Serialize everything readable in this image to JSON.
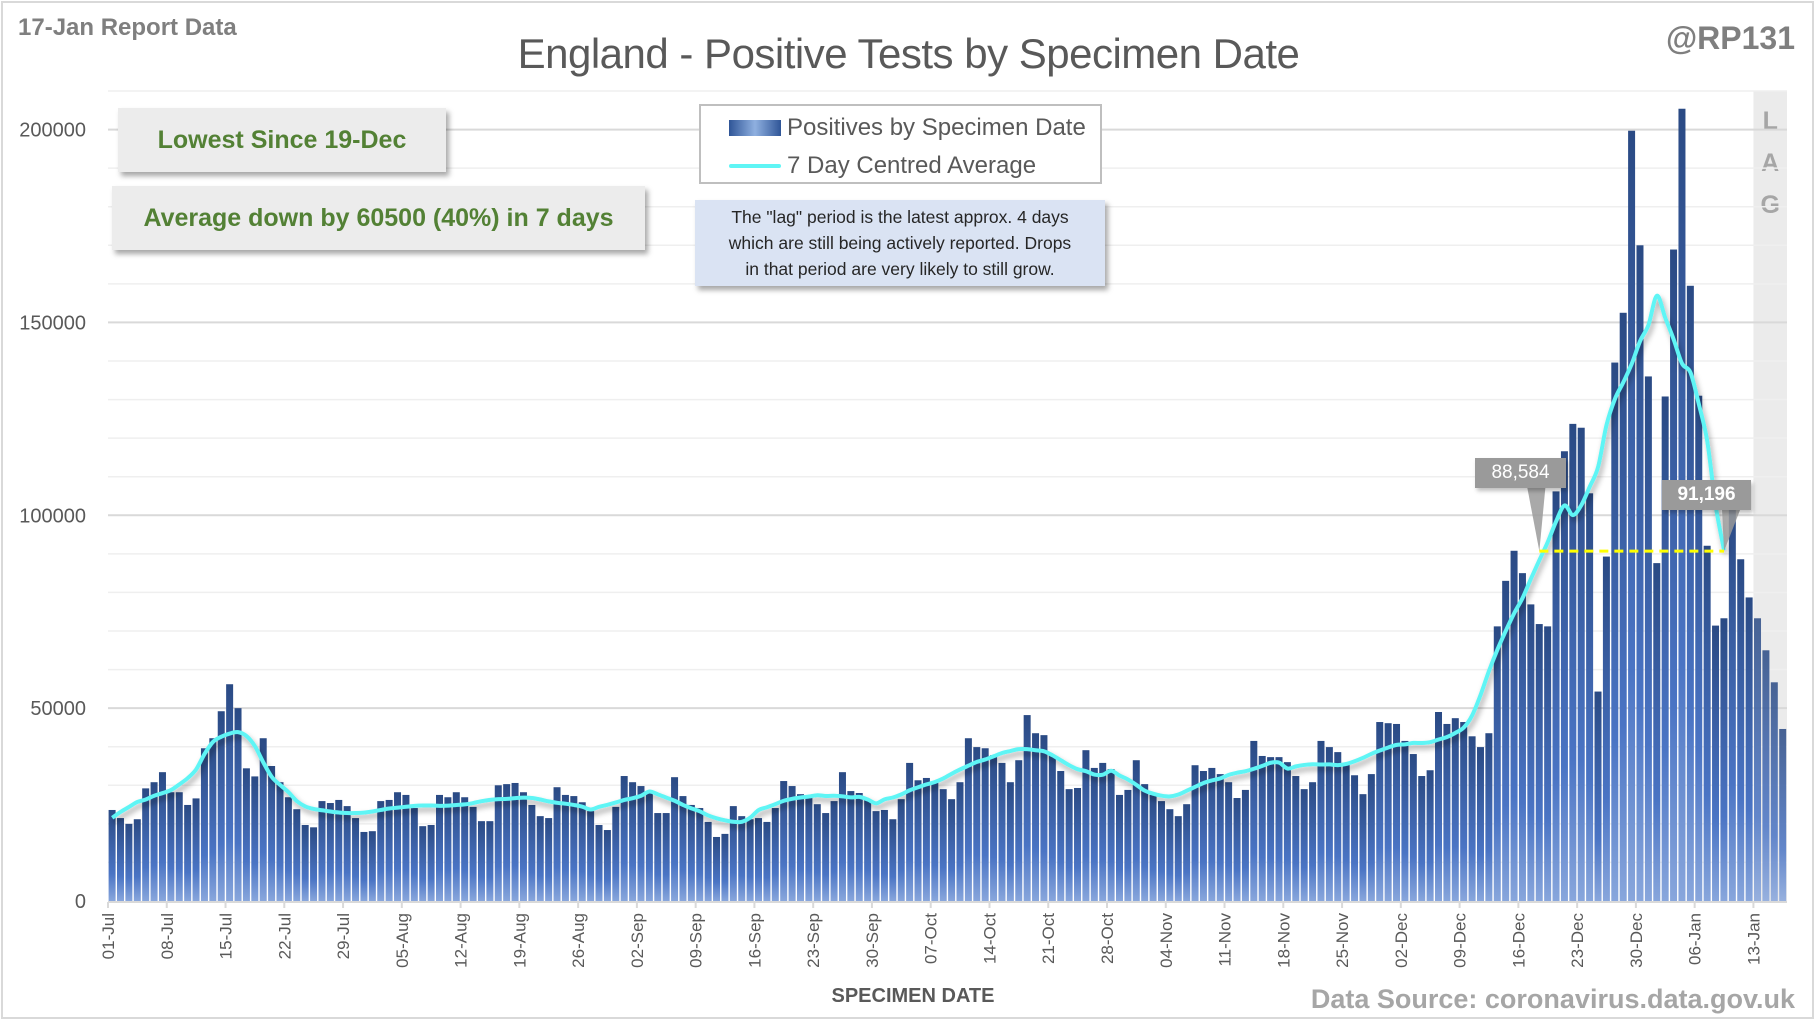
{
  "header": {
    "report_label": "17-Jan Report Data",
    "handle": "@RP131",
    "title": "England - Positive Tests by Specimen Date"
  },
  "callouts": {
    "lowest_since": "Lowest Since 19-Dec",
    "average_change": "Average down by 60500 (40%) in 7 days"
  },
  "legend": {
    "bars_label": "Positives by Specimen Date",
    "line_label": "7 Day Centred Average"
  },
  "lag_note": {
    "line1": "The \"lag\" period is the latest approx. 4 days",
    "line2": "which are still being actively reported. Drops",
    "line3": "in that period are very likely to still grow."
  },
  "lag_label": [
    "L",
    "A",
    "G"
  ],
  "value_labels": [
    {
      "text": "88,584",
      "index": 170,
      "value": 88584
    },
    {
      "text": "91,196",
      "index": 192,
      "value": 91196
    }
  ],
  "footer": {
    "xlabel": "SPECIMEN DATE",
    "source": "Data Source: coronavirus.data.gov.uk"
  },
  "colors": {
    "bar_dark": "#2f4f8a",
    "bar_light": "#7f9fd6",
    "avg_line": "#5ff5f5",
    "reference_line": "#ffff00",
    "callout_text": "#538135",
    "lag_shade": "#ebebeb"
  },
  "chart_data": {
    "type": "bar",
    "title": "England - Positive Tests by Specimen Date",
    "xlabel": "SPECIMEN DATE",
    "ylabel": "",
    "ylim": [
      0,
      210000
    ],
    "yticks": [
      0,
      50000,
      100000,
      150000,
      200000
    ],
    "grid_step": 10000,
    "grid": true,
    "legend_position": "top-center",
    "start_date": "01-Jul",
    "end_date": "16-Jan",
    "x_tick_labels": [
      "01-Jul",
      "08-Jul",
      "15-Jul",
      "22-Jul",
      "29-Jul",
      "05-Aug",
      "12-Aug",
      "19-Aug",
      "26-Aug",
      "02-Sep",
      "09-Sep",
      "16-Sep",
      "23-Sep",
      "30-Sep",
      "07-Oct",
      "14-Oct",
      "21-Oct",
      "28-Oct",
      "04-Nov",
      "11-Nov",
      "18-Nov",
      "25-Nov",
      "02-Dec",
      "09-Dec",
      "16-Dec",
      "23-Dec",
      "30-Dec",
      "06-Jan",
      "13-Jan"
    ],
    "x_tick_every": 7,
    "lag_days": 4,
    "series": [
      {
        "name": "Positives by Specimen Date",
        "kind": "bar",
        "values": [
          23600,
          21500,
          20000,
          21200,
          29200,
          30800,
          33400,
          28200,
          28200,
          24900,
          26600,
          39600,
          42200,
          49200,
          56200,
          50000,
          34400,
          32300,
          42200,
          35000,
          30800,
          26900,
          23800,
          19700,
          19100,
          25900,
          25400,
          26200,
          24600,
          21500,
          17900,
          18100,
          25900,
          26200,
          28200,
          27500,
          24100,
          19400,
          19700,
          27500,
          26900,
          28200,
          26900,
          24400,
          20700,
          20700,
          30000,
          30300,
          30600,
          28200,
          24900,
          22000,
          21500,
          29500,
          27500,
          27200,
          25600,
          23300,
          19700,
          18400,
          24400,
          32400,
          30800,
          29800,
          28000,
          22800,
          22800,
          32100,
          27200,
          24900,
          24100,
          20500,
          16600,
          17400,
          24600,
          22000,
          21200,
          21500,
          20500,
          24100,
          31100,
          29800,
          27700,
          27200,
          25100,
          22800,
          25900,
          33400,
          28500,
          28000,
          26200,
          23300,
          23600,
          21200,
          26400,
          35800,
          31300,
          31900,
          30800,
          29000,
          26400,
          30800,
          42200,
          39900,
          39600,
          37800,
          35800,
          30800,
          36500,
          48200,
          43500,
          43000,
          37800,
          33700,
          29000,
          29300,
          39100,
          34500,
          35800,
          34200,
          27500,
          28800,
          36500,
          30300,
          27500,
          25900,
          23800,
          22000,
          25100,
          35200,
          33700,
          34500,
          32900,
          30800,
          26700,
          28800,
          41500,
          37600,
          37300,
          37300,
          36000,
          32400,
          29000,
          30800,
          41500,
          39900,
          38600,
          35500,
          32600,
          27700,
          32900,
          46400,
          46100,
          45900,
          41500,
          38100,
          32400,
          33900,
          49000,
          45900,
          47400,
          46400,
          42700,
          39900,
          43500,
          71200,
          83000,
          90800,
          85000,
          76900,
          71800,
          71200,
          106200,
          116600,
          123700,
          122700,
          105700,
          54300,
          89300,
          139600,
          152500,
          199700,
          170000,
          136000,
          87600,
          130800,
          168900,
          205400,
          159500,
          131000,
          92100,
          71400,
          73300,
          101700,
          88600,
          78700,
          73300,
          65000,
          56700,
          44600
        ]
      },
      {
        "name": "7 Day Centred Average",
        "kind": "line",
        "window": 7,
        "last_index": 192
      }
    ],
    "reference_line": {
      "from_index": 170,
      "to_index": 192,
      "value": 90700
    }
  }
}
